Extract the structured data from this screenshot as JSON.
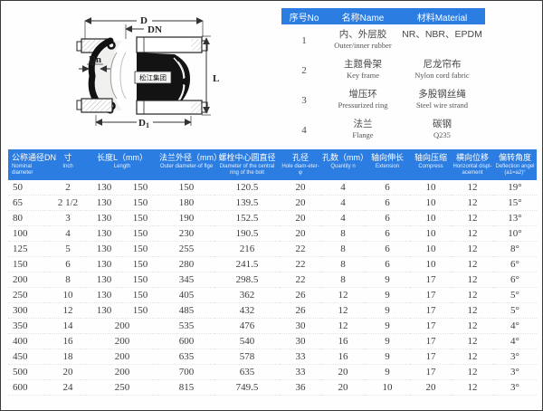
{
  "colors": {
    "header_blue": "#2b7de2",
    "data_text": "#3c3c3c",
    "diagram_line": "#333333",
    "page_border": "#3a3a3a"
  },
  "diagram": {
    "labels": {
      "d": "D",
      "dn_top": "DN",
      "dn_left": "Dn",
      "d1_base": "D",
      "d1_sub": "1",
      "l": "L",
      "brand": "松江集团"
    }
  },
  "material_table": {
    "headers": [
      "序号No",
      "名称Name",
      "材料Material"
    ],
    "rows": [
      {
        "no": "1",
        "name_cn": "内、外层胶",
        "name_en": "Outer/inner rubber",
        "material_cn": "NR、NBR、EPDM",
        "material_en": ""
      },
      {
        "no": "2",
        "name_cn": "主题骨架",
        "name_en": "Key frame",
        "material_cn": "尼龙帘布",
        "material_en": "Nylon cord fabric"
      },
      {
        "no": "3",
        "name_cn": "增压环",
        "name_en": "Pressurized ring",
        "material_cn": "多股钢丝绳",
        "material_en": "Steel wire strand"
      },
      {
        "no": "4",
        "name_cn": "法兰",
        "name_en": "Flange",
        "material_cn": "碳钢",
        "material_en": "Q235"
      }
    ]
  },
  "spec_table": {
    "columns": [
      {
        "cn": "公称通径DN",
        "en": "Nominal diameter"
      },
      {
        "cn": "寸",
        "en": "Inch"
      },
      {
        "cn": "长度L（mm）",
        "en": "Length"
      },
      {
        "cn": "法兰外径（mm）",
        "en": "Outer diameter-of flge"
      },
      {
        "cn": "螺栓中心圆直径",
        "en": "Diameter of the central ring of the bolt"
      },
      {
        "cn": "孔径",
        "en": "Hole diam-eter-φ"
      },
      {
        "cn": "孔数（mm）",
        "en": "Quantity n"
      },
      {
        "cn": "轴向伸长",
        "en": "Extension"
      },
      {
        "cn": "轴向压缩",
        "en": "Compress"
      },
      {
        "cn": "横向位移",
        "en": "Horizontal displ-acement"
      },
      {
        "cn": "偏转角度",
        "en": "Deflection angel (a1=a2)°"
      }
    ],
    "rows": [
      {
        "dn": "50",
        "inch": "2",
        "len": [
          "130",
          "150"
        ],
        "flange_od": "150",
        "bolt_circle": "120.5",
        "hole_dia": "20",
        "hole_qty": "4",
        "extension": "6",
        "compress": "10",
        "horizontal": "12",
        "deflection": "19°"
      },
      {
        "dn": "65",
        "inch": "2 1/2",
        "len": [
          "130",
          "150"
        ],
        "flange_od": "180",
        "bolt_circle": "139.5",
        "hole_dia": "20",
        "hole_qty": "4",
        "extension": "6",
        "compress": "10",
        "horizontal": "12",
        "deflection": "15°"
      },
      {
        "dn": "80",
        "inch": "3",
        "len": [
          "130",
          "150"
        ],
        "flange_od": "190",
        "bolt_circle": "152.5",
        "hole_dia": "20",
        "hole_qty": "4",
        "extension": "6",
        "compress": "10",
        "horizontal": "12",
        "deflection": "13°"
      },
      {
        "dn": "100",
        "inch": "4",
        "len": [
          "130",
          "150"
        ],
        "flange_od": "230",
        "bolt_circle": "190.5",
        "hole_dia": "20",
        "hole_qty": "8",
        "extension": "6",
        "compress": "10",
        "horizontal": "12",
        "deflection": "10°"
      },
      {
        "dn": "125",
        "inch": "5",
        "len": [
          "130",
          "150"
        ],
        "flange_od": "255",
        "bolt_circle": "216",
        "hole_dia": "22",
        "hole_qty": "8",
        "extension": "6",
        "compress": "10",
        "horizontal": "12",
        "deflection": "8°"
      },
      {
        "dn": "150",
        "inch": "6",
        "len": [
          "130",
          "150"
        ],
        "flange_od": "280",
        "bolt_circle": "241.5",
        "hole_dia": "22",
        "hole_qty": "8",
        "extension": "6",
        "compress": "10",
        "horizontal": "12",
        "deflection": "6°"
      },
      {
        "dn": "200",
        "inch": "8",
        "len": [
          "130",
          "150"
        ],
        "flange_od": "345",
        "bolt_circle": "298.5",
        "hole_dia": "22",
        "hole_qty": "8",
        "extension": "9",
        "compress": "17",
        "horizontal": "12",
        "deflection": "6°"
      },
      {
        "dn": "250",
        "inch": "10",
        "len": [
          "130",
          "150"
        ],
        "flange_od": "405",
        "bolt_circle": "362",
        "hole_dia": "26",
        "hole_qty": "12",
        "extension": "9",
        "compress": "17",
        "horizontal": "12",
        "deflection": "5°"
      },
      {
        "dn": "300",
        "inch": "12",
        "len": [
          "130",
          "150"
        ],
        "flange_od": "485",
        "bolt_circle": "432",
        "hole_dia": "26",
        "hole_qty": "12",
        "extension": "9",
        "compress": "17",
        "horizontal": "12",
        "deflection": "5°"
      },
      {
        "dn": "350",
        "inch": "14",
        "len": [
          "200"
        ],
        "flange_od": "535",
        "bolt_circle": "476",
        "hole_dia": "30",
        "hole_qty": "12",
        "extension": "9",
        "compress": "17",
        "horizontal": "12",
        "deflection": "4°"
      },
      {
        "dn": "400",
        "inch": "16",
        "len": [
          "200"
        ],
        "flange_od": "600",
        "bolt_circle": "540",
        "hole_dia": "30",
        "hole_qty": "16",
        "extension": "9",
        "compress": "17",
        "horizontal": "12",
        "deflection": "4°"
      },
      {
        "dn": "450",
        "inch": "18",
        "len": [
          "200"
        ],
        "flange_od": "635",
        "bolt_circle": "578",
        "hole_dia": "33",
        "hole_qty": "16",
        "extension": "9",
        "compress": "17",
        "horizontal": "12",
        "deflection": "3°"
      },
      {
        "dn": "500",
        "inch": "20",
        "len": [
          "200"
        ],
        "flange_od": "700",
        "bolt_circle": "635",
        "hole_dia": "33",
        "hole_qty": "20",
        "extension": "9",
        "compress": "17",
        "horizontal": "12",
        "deflection": "3°"
      },
      {
        "dn": "600",
        "inch": "24",
        "len": [
          "250"
        ],
        "flange_od": "815",
        "bolt_circle": "749.5",
        "hole_dia": "36",
        "hole_qty": "20",
        "extension": "10",
        "compress": "20",
        "horizontal": "12",
        "deflection": "3°"
      }
    ]
  }
}
